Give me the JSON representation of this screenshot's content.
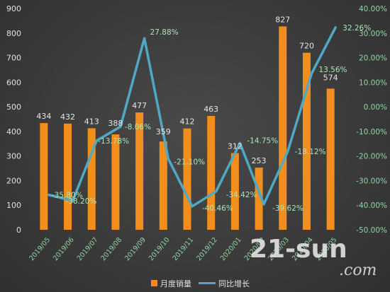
{
  "chart_data": {
    "type": "bar",
    "categories": [
      "2019/05",
      "2019/06",
      "2019/07",
      "2019/08",
      "2019/09",
      "2019/10",
      "2019/11",
      "2019/12",
      "2020/01",
      "2020/02",
      "2020/03",
      "2020/04",
      "2020/05"
    ],
    "series": [
      {
        "name": "月度销量",
        "type": "bar",
        "axis": "left",
        "values": [
          434,
          432,
          413,
          388,
          477,
          359,
          412,
          463,
          312,
          253,
          827,
          720,
          574
        ],
        "labels": [
          "434",
          "432",
          "413",
          "388",
          "477",
          "359",
          "412",
          "463",
          "312",
          "253",
          "827",
          "720",
          "574"
        ],
        "color": "#f28e1e"
      },
      {
        "name": "同比增长",
        "type": "line",
        "axis": "right",
        "values": [
          -35.8,
          -38.2,
          -13.78,
          -8.06,
          27.88,
          -21.1,
          -40.46,
          -34.42,
          -14.75,
          -39.62,
          -18.12,
          13.56,
          32.26
        ],
        "labels": [
          "-35.80%",
          "-38.20%",
          "-13.78%",
          "-8.06%",
          "27.88%",
          "-21.10%",
          "-40.46%",
          "-34.42%",
          "-14.75%",
          "-39.62%",
          "-18.12%",
          "13.56%",
          "32.26%"
        ],
        "color": "#4fa8c4"
      }
    ],
    "y_left": {
      "min": 0,
      "max": 900,
      "ticks": [
        "0",
        "100",
        "200",
        "300",
        "400",
        "500",
        "600",
        "700",
        "800",
        "900"
      ]
    },
    "y_right": {
      "min": -50,
      "max": 40,
      "ticks": [
        "-50.00%",
        "-40.00%",
        "-30.00%",
        "-20.00%",
        "-10.00%",
        "0.00%",
        "10.00%",
        "20.00%",
        "30.00%",
        "40.00%"
      ]
    },
    "grid": false,
    "legend": "bottom-center"
  },
  "legend": {
    "bar_label": "月度销量",
    "line_label": "同比增长"
  },
  "watermark": {
    "main": "21-sun",
    "sub": ".com"
  }
}
